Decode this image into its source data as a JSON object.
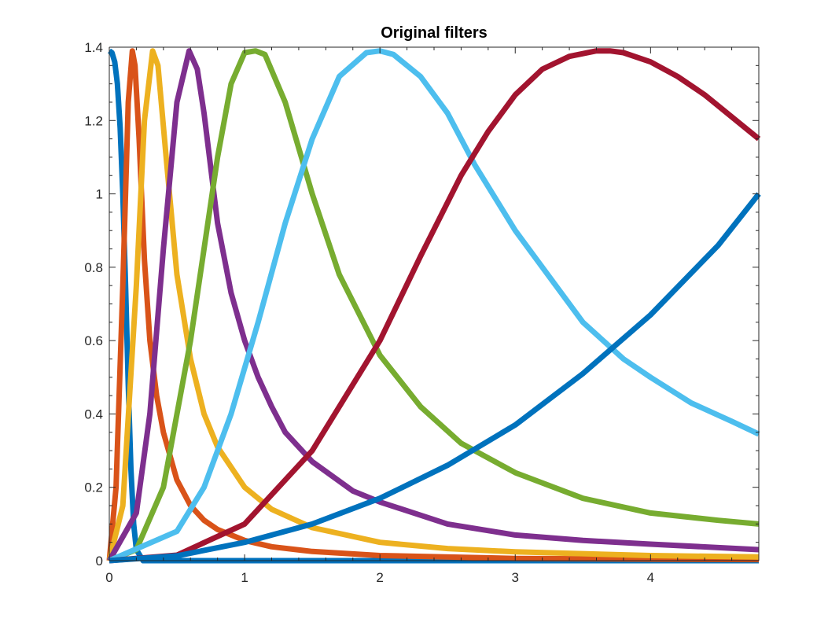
{
  "chart_data": {
    "type": "line",
    "title": "Original filters",
    "xlabel": "",
    "ylabel": "",
    "xlim": [
      0,
      4.8
    ],
    "ylim": [
      0,
      1.4
    ],
    "xticks": [
      0,
      1,
      2,
      3,
      4
    ],
    "yticks": [
      0,
      0.2,
      0.4,
      0.6,
      0.8,
      1,
      1.2,
      1.4
    ],
    "xtick_labels": [
      "0",
      "1",
      "2",
      "3",
      "4"
    ],
    "ytick_labels": [
      "0",
      "0.2",
      "0.4",
      "0.6",
      "0.8",
      "1",
      "1.2",
      "1.4"
    ],
    "grid": false,
    "legend": "none",
    "series": [
      {
        "color": "#0072BD",
        "x": [
          0,
          0.02,
          0.04,
          0.06,
          0.08,
          0.1,
          0.12,
          0.14,
          0.16,
          0.18,
          0.2,
          0.25,
          0.3,
          4.8
        ],
        "y": [
          1.39,
          1.385,
          1.36,
          1.3,
          1.18,
          1.0,
          0.75,
          0.48,
          0.25,
          0.1,
          0.03,
          0.0,
          0.0,
          0.0
        ]
      },
      {
        "color": "#D95319",
        "x": [
          0,
          0.05,
          0.1,
          0.14,
          0.17,
          0.19,
          0.22,
          0.26,
          0.3,
          0.35,
          0.4,
          0.5,
          0.6,
          0.7,
          0.8,
          1.0,
          1.2,
          1.5,
          2.0,
          3.0,
          4.0,
          4.8
        ],
        "y": [
          0.0,
          0.2,
          0.75,
          1.25,
          1.39,
          1.35,
          1.15,
          0.82,
          0.6,
          0.45,
          0.35,
          0.22,
          0.15,
          0.11,
          0.085,
          0.055,
          0.038,
          0.025,
          0.014,
          0.006,
          0.004,
          0.003
        ]
      },
      {
        "color": "#EDB120",
        "x": [
          0,
          0.1,
          0.2,
          0.26,
          0.32,
          0.36,
          0.42,
          0.5,
          0.6,
          0.7,
          0.8,
          1.0,
          1.2,
          1.5,
          2.0,
          2.5,
          3.0,
          4.0,
          4.8
        ],
        "y": [
          0.0,
          0.15,
          0.75,
          1.2,
          1.39,
          1.35,
          1.1,
          0.78,
          0.55,
          0.4,
          0.31,
          0.2,
          0.14,
          0.09,
          0.05,
          0.033,
          0.024,
          0.014,
          0.01
        ]
      },
      {
        "color": "#7E2F8E",
        "x": [
          0,
          0.2,
          0.3,
          0.4,
          0.5,
          0.59,
          0.65,
          0.7,
          0.8,
          0.9,
          1.0,
          1.1,
          1.2,
          1.3,
          1.5,
          1.8,
          2.0,
          2.5,
          3.0,
          3.5,
          4.0,
          4.8
        ],
        "y": [
          0.0,
          0.13,
          0.4,
          0.85,
          1.25,
          1.39,
          1.34,
          1.22,
          0.92,
          0.73,
          0.6,
          0.5,
          0.42,
          0.35,
          0.27,
          0.19,
          0.16,
          0.1,
          0.07,
          0.055,
          0.045,
          0.03
        ]
      },
      {
        "color": "#77AC30",
        "x": [
          0,
          0.2,
          0.4,
          0.6,
          0.8,
          0.9,
          1.0,
          1.08,
          1.15,
          1.3,
          1.5,
          1.7,
          2.0,
          2.3,
          2.6,
          3.0,
          3.5,
          4.0,
          4.5,
          4.8
        ],
        "y": [
          0.0,
          0.03,
          0.2,
          0.6,
          1.1,
          1.3,
          1.385,
          1.39,
          1.38,
          1.25,
          1.0,
          0.78,
          0.56,
          0.42,
          0.32,
          0.24,
          0.17,
          0.13,
          0.11,
          0.1
        ]
      },
      {
        "color": "#4DBEEE",
        "x": [
          0,
          0.5,
          0.7,
          0.9,
          1.1,
          1.3,
          1.5,
          1.7,
          1.9,
          2.0,
          2.1,
          2.3,
          2.5,
          2.7,
          3.0,
          3.3,
          3.5,
          3.8,
          4.0,
          4.3,
          4.6,
          4.8
        ],
        "y": [
          0.0,
          0.08,
          0.2,
          0.4,
          0.65,
          0.92,
          1.15,
          1.32,
          1.385,
          1.39,
          1.38,
          1.32,
          1.22,
          1.08,
          0.9,
          0.75,
          0.65,
          0.55,
          0.5,
          0.43,
          0.38,
          0.345
        ]
      },
      {
        "color": "#A2142F",
        "x": [
          0,
          0.5,
          1.0,
          1.5,
          2.0,
          2.3,
          2.6,
          2.8,
          3.0,
          3.2,
          3.4,
          3.6,
          3.7,
          3.8,
          4.0,
          4.2,
          4.4,
          4.6,
          4.8
        ],
        "y": [
          0.0,
          0.015,
          0.1,
          0.3,
          0.6,
          0.83,
          1.05,
          1.17,
          1.27,
          1.34,
          1.375,
          1.39,
          1.39,
          1.385,
          1.36,
          1.32,
          1.27,
          1.21,
          1.15
        ]
      },
      {
        "color": "#0072BD",
        "x": [
          0,
          0.5,
          1.0,
          1.5,
          2.0,
          2.5,
          3.0,
          3.5,
          4.0,
          4.5,
          4.8
        ],
        "y": [
          0.0,
          0.013,
          0.05,
          0.1,
          0.17,
          0.26,
          0.37,
          0.51,
          0.67,
          0.86,
          1.0
        ]
      }
    ]
  }
}
